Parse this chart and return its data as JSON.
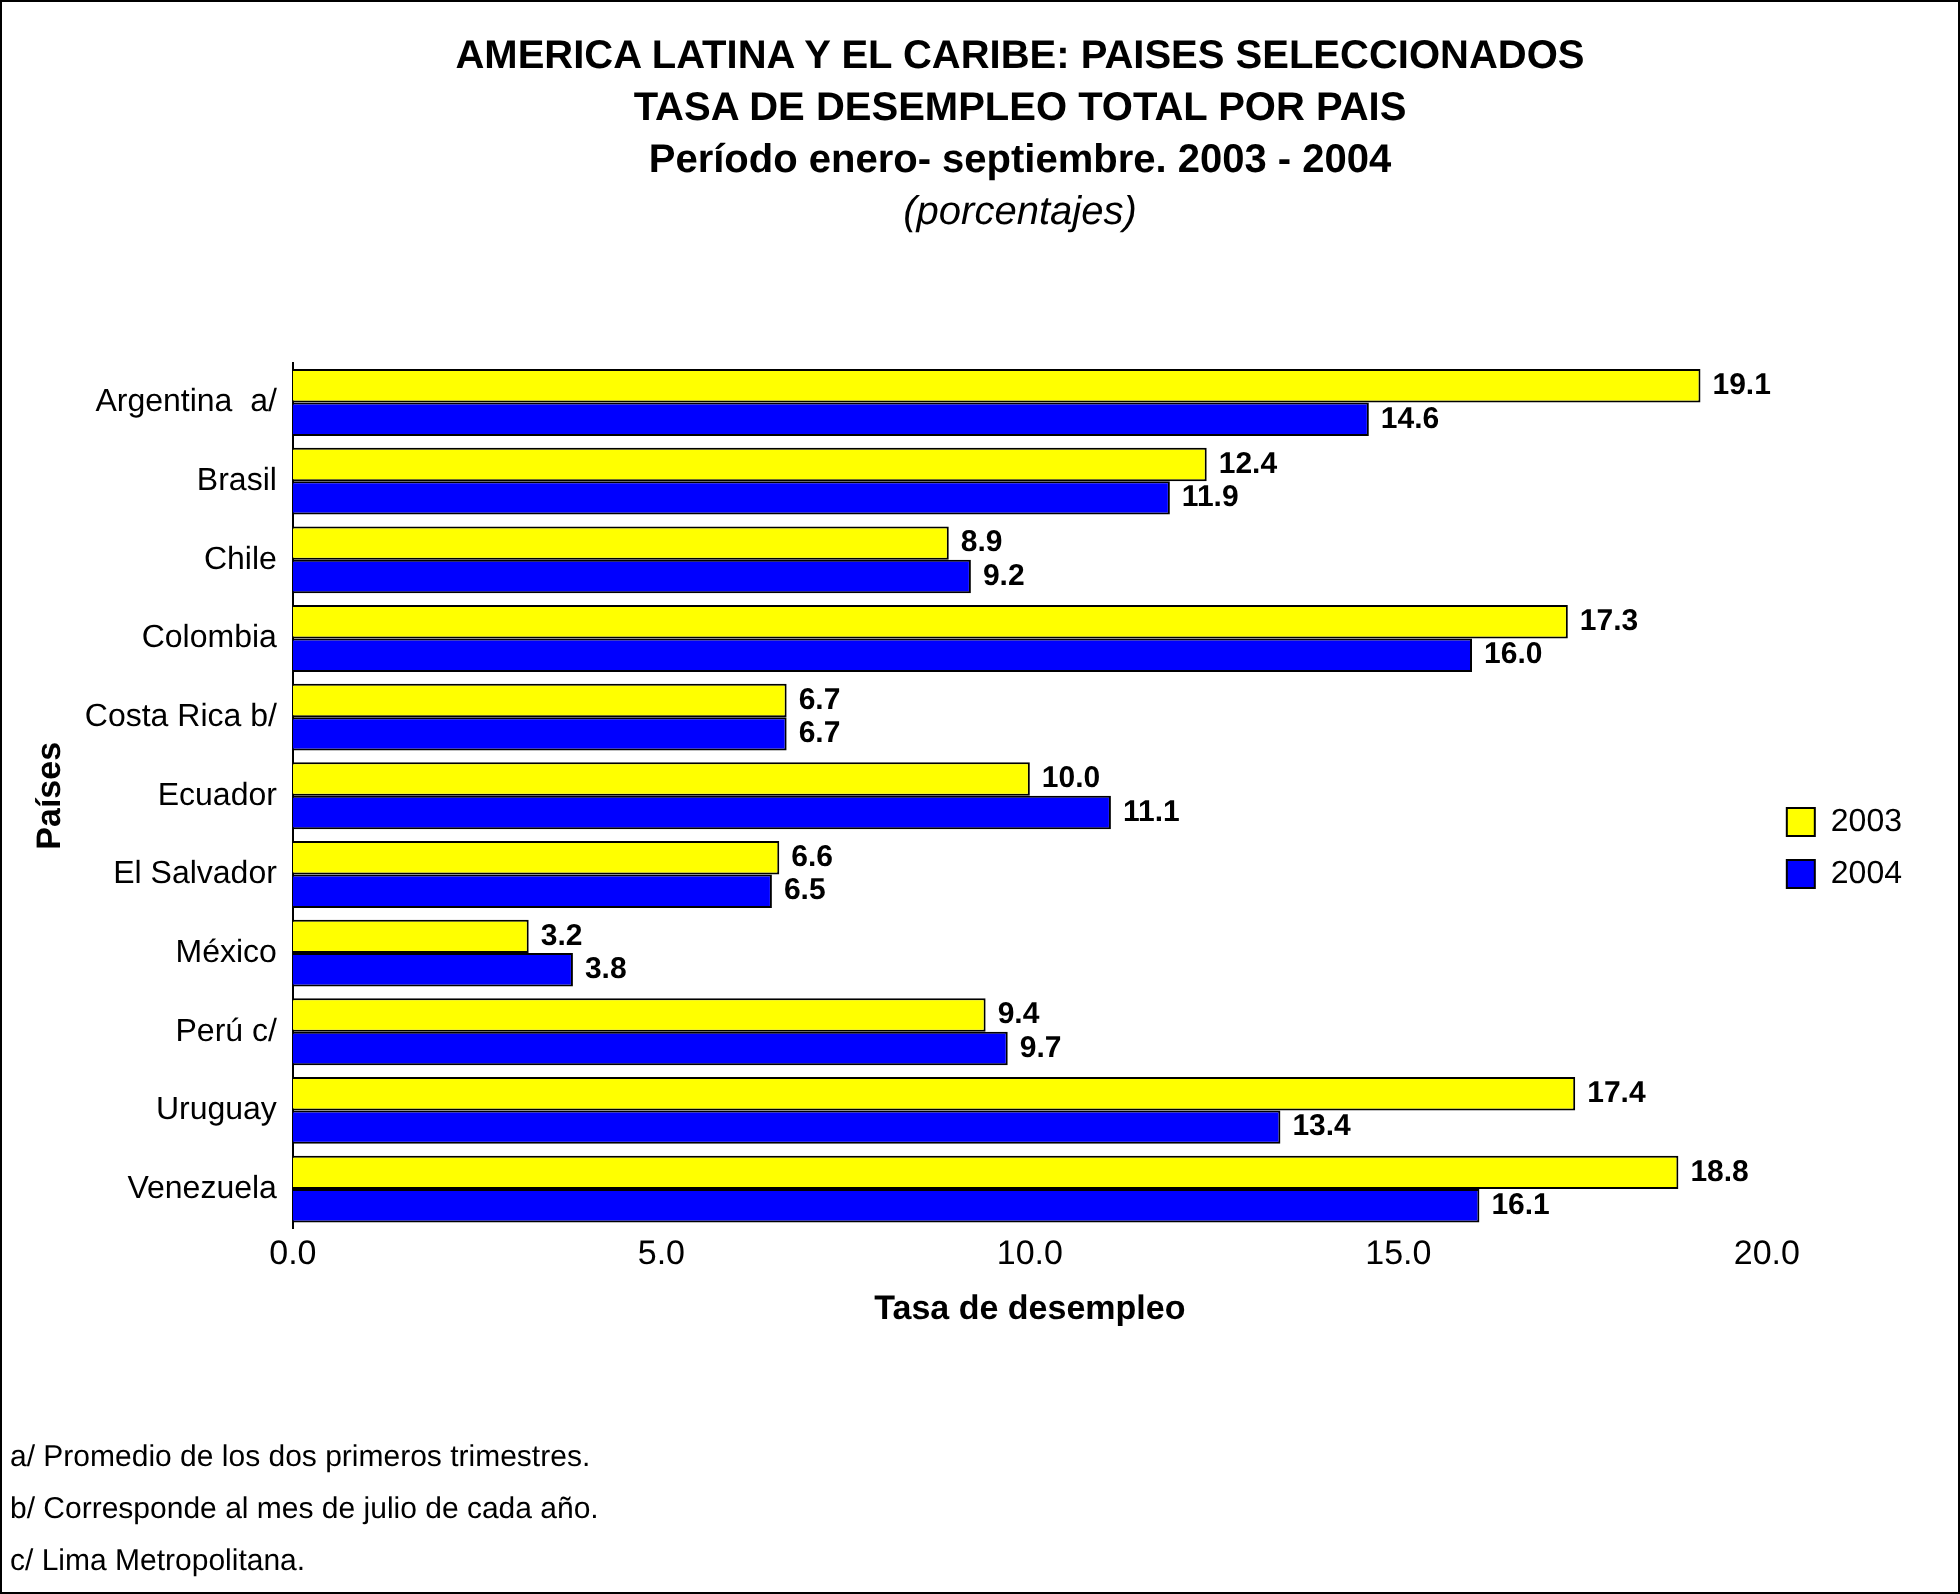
{
  "chart_data": {
    "type": "bar",
    "orientation": "horizontal",
    "title": "AMERICA LATINA Y EL CARIBE: PAISES SELECCIONADOS\nTASA DE DESEMPLEO TOTAL POR PAIS\nPeríodo enero- septiembre. 2003 - 2004",
    "subtitle": "(porcentajes)",
    "xlabel": "Tasa de desempleo",
    "ylabel": "Países",
    "categories": [
      "Argentina  a/",
      "Brasil",
      "Chile",
      "Colombia",
      "Costa Rica b/",
      "Ecuador",
      "El Salvador",
      "México",
      "Perú c/",
      "Uruguay",
      "Venezuela"
    ],
    "series": [
      {
        "name": "2003",
        "color": "#ffff00",
        "values": [
          19.1,
          12.4,
          8.9,
          17.3,
          6.7,
          10.0,
          6.6,
          3.2,
          9.4,
          17.4,
          18.8
        ],
        "value_labels": [
          "19.1",
          "12.4",
          "8.9",
          "17.3",
          "6.7",
          "10.0",
          "6.6",
          "3.2",
          "9.4",
          "17.4",
          "18.8"
        ]
      },
      {
        "name": "2004",
        "color": "#0000ff",
        "values": [
          14.6,
          11.9,
          9.2,
          16.0,
          6.7,
          11.1,
          6.5,
          3.8,
          9.7,
          13.4,
          16.1
        ],
        "value_labels": [
          "14.6",
          "11.9",
          "9.2",
          "16.0",
          "6.7",
          "11.1",
          "6.5",
          "3.8",
          "9.7",
          "13.4",
          "16.1"
        ]
      }
    ],
    "xlim": [
      0,
      20
    ],
    "xticks": [
      {
        "value": 0,
        "label": "0.0"
      },
      {
        "value": 5,
        "label": "5.0"
      },
      {
        "value": 10,
        "label": "10.0"
      },
      {
        "value": 15,
        "label": "15.0"
      },
      {
        "value": 20,
        "label": "20.0"
      }
    ],
    "grid": false,
    "legend": "right",
    "annotations": [
      "a/ Promedio de los dos primeros trimestres.",
      "b/ Corresponde al mes de julio de cada año.",
      "c/ Lima Metropolitana."
    ]
  }
}
